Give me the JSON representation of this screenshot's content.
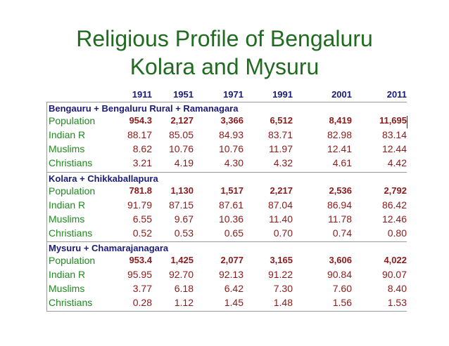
{
  "title_line1": "Religious Profile of Bengaluru",
  "title_line2": "Kolara and Mysuru",
  "years": [
    "1911",
    "1951",
    "1971",
    "1991",
    "2001",
    "2011"
  ],
  "sections": [
    {
      "name": "Bengauru + Bengaluru Rural + Ramanagara",
      "rows": [
        {
          "label": "Population",
          "bold": true,
          "values": [
            "954.3",
            "2,127",
            "3,366",
            "6,512",
            "8,419",
            "11,695"
          ]
        },
        {
          "label": "Indian R",
          "bold": false,
          "values": [
            "88.17",
            "85.05",
            "84.93",
            "83.71",
            "82.98",
            "83.14"
          ]
        },
        {
          "label": "Muslims",
          "bold": false,
          "values": [
            "8.62",
            "10.76",
            "10.76",
            "11.97",
            "12.41",
            "12.44"
          ]
        },
        {
          "label": "Christians",
          "bold": false,
          "values": [
            "3.21",
            "4.19",
            "4.30",
            "4.32",
            "4.61",
            "4.42"
          ]
        }
      ]
    },
    {
      "name": "Kolara + Chikkaballapura",
      "rows": [
        {
          "label": "Population",
          "bold": true,
          "values": [
            "781.8",
            "1,130",
            "1,517",
            "2,217",
            "2,536",
            "2,792"
          ]
        },
        {
          "label": "Indian R",
          "bold": false,
          "values": [
            "91.79",
            "87.15",
            "87.61",
            "87.04",
            "86.94",
            "86.42"
          ]
        },
        {
          "label": "Muslims",
          "bold": false,
          "values": [
            "6.55",
            "9.67",
            "10.36",
            "11.40",
            "11.78",
            "12.46"
          ]
        },
        {
          "label": "Christians",
          "bold": false,
          "values": [
            "0.52",
            "0.53",
            "0.65",
            "0.70",
            "0.74",
            "0.80"
          ]
        }
      ]
    },
    {
      "name": "Mysuru + Chamarajanagara",
      "rows": [
        {
          "label": "Population",
          "bold": true,
          "values": [
            "953.4",
            "1,425",
            "2,077",
            "3,165",
            "3,606",
            "4,022"
          ]
        },
        {
          "label": "Indian R",
          "bold": false,
          "values": [
            "95.95",
            "92.70",
            "92.13",
            "91.22",
            "90.84",
            "90.07"
          ]
        },
        {
          "label": "Muslims",
          "bold": false,
          "values": [
            "3.77",
            "6.18",
            "6.42",
            "7.30",
            "7.60",
            "8.40"
          ]
        },
        {
          "label": "Christians",
          "bold": false,
          "values": [
            "0.28",
            "1.12",
            "1.45",
            "1.48",
            "1.56",
            "1.53"
          ]
        }
      ]
    }
  ]
}
